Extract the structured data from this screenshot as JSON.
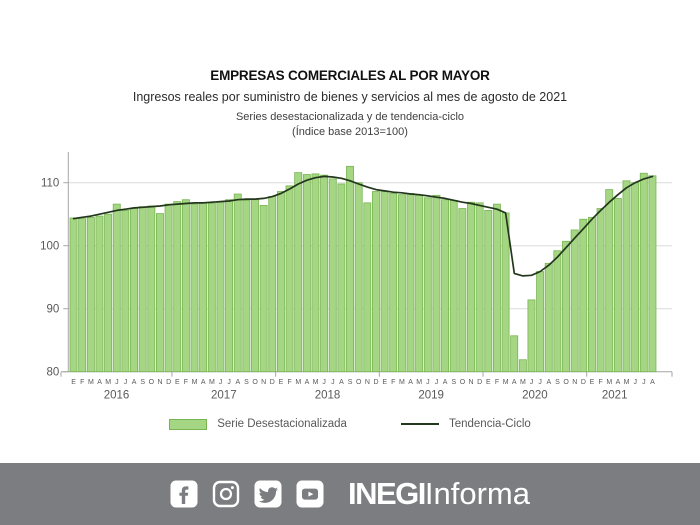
{
  "header": {
    "title": "EMPRESAS COMERCIALES AL POR MAYOR",
    "subtitle": "Ingresos reales por suministro de bienes y servicios al mes de agosto de 2021",
    "series_note": "Series desestacionalizada y de tendencia-ciclo",
    "base_note": "(Índice base 2013=100)"
  },
  "chart_data": {
    "type": "bar",
    "title": "EMPRESAS COMERCIALES AL POR MAYOR",
    "subtitle": "Ingresos reales por suministro de bienes y servicios al mes de agosto de 2021",
    "ylim": [
      80,
      114
    ],
    "y_ticks": [
      80,
      90,
      100,
      110
    ],
    "grid": true,
    "legend_position": "bottom",
    "years": [
      {
        "label": "2016",
        "months": "EFMAMJJASOND"
      },
      {
        "label": "2017",
        "months": "EFMAMJJASOND"
      },
      {
        "label": "2018",
        "months": "EFMAMJJASOND"
      },
      {
        "label": "2019",
        "months": "EFMAMJJASOND"
      },
      {
        "label": "2020",
        "months": "EFMAMJJASOND"
      },
      {
        "label": "2021",
        "months": "EFMAMJJA"
      }
    ],
    "series": [
      {
        "name": "Serie Desestacionalizada",
        "type": "bar",
        "values": [
          104.4,
          104.3,
          104.5,
          104.7,
          105.0,
          106.6,
          105.6,
          105.9,
          106.2,
          106.3,
          105.1,
          106.6,
          107.0,
          107.3,
          106.6,
          106.8,
          106.7,
          107.0,
          107.3,
          108.2,
          107.2,
          107.3,
          106.4,
          107.8,
          108.6,
          109.5,
          111.6,
          111.3,
          111.4,
          111.2,
          110.6,
          109.8,
          112.6,
          110.0,
          106.8,
          108.6,
          108.6,
          108.3,
          108.1,
          108.3,
          108.0,
          107.6,
          108.0,
          107.3,
          107.2,
          105.9,
          106.9,
          106.8,
          105.6,
          106.6,
          105.2,
          85.7,
          81.9,
          91.4,
          95.9,
          97.2,
          99.2,
          100.7,
          102.5,
          104.2,
          104.5,
          105.9,
          108.9,
          107.5,
          110.3,
          110.0,
          111.5,
          111.1
        ]
      },
      {
        "name": "Tendencia-Ciclo",
        "type": "line",
        "values": [
          104.3,
          104.5,
          104.7,
          105.0,
          105.3,
          105.6,
          105.8,
          106.0,
          106.1,
          106.2,
          106.3,
          106.5,
          106.6,
          106.7,
          106.8,
          106.8,
          106.9,
          107.0,
          107.1,
          107.3,
          107.4,
          107.4,
          107.5,
          107.8,
          108.3,
          109.0,
          109.8,
          110.4,
          110.8,
          111.0,
          110.9,
          110.7,
          110.3,
          109.8,
          109.3,
          108.9,
          108.7,
          108.5,
          108.4,
          108.2,
          108.1,
          107.9,
          107.7,
          107.5,
          107.2,
          106.9,
          106.7,
          106.4,
          106.1,
          105.8,
          105.2,
          95.6,
          95.2,
          95.3,
          95.9,
          96.9,
          98.2,
          99.7,
          101.2,
          102.7,
          104.2,
          105.6,
          106.9,
          108.1,
          109.2,
          110.0,
          110.6,
          111.0
        ]
      }
    ],
    "colors": {
      "bar_fill": "#a5d683",
      "bar_border": "#78b552",
      "line": "#22371c",
      "grid": "#dcdcdc",
      "axis": "#a6a6a6",
      "tick_label": "#595959"
    }
  },
  "footer": {
    "brand_bold": "INEGI",
    "brand_light": "Informa",
    "icons": [
      "facebook",
      "instagram",
      "twitter",
      "youtube"
    ]
  }
}
